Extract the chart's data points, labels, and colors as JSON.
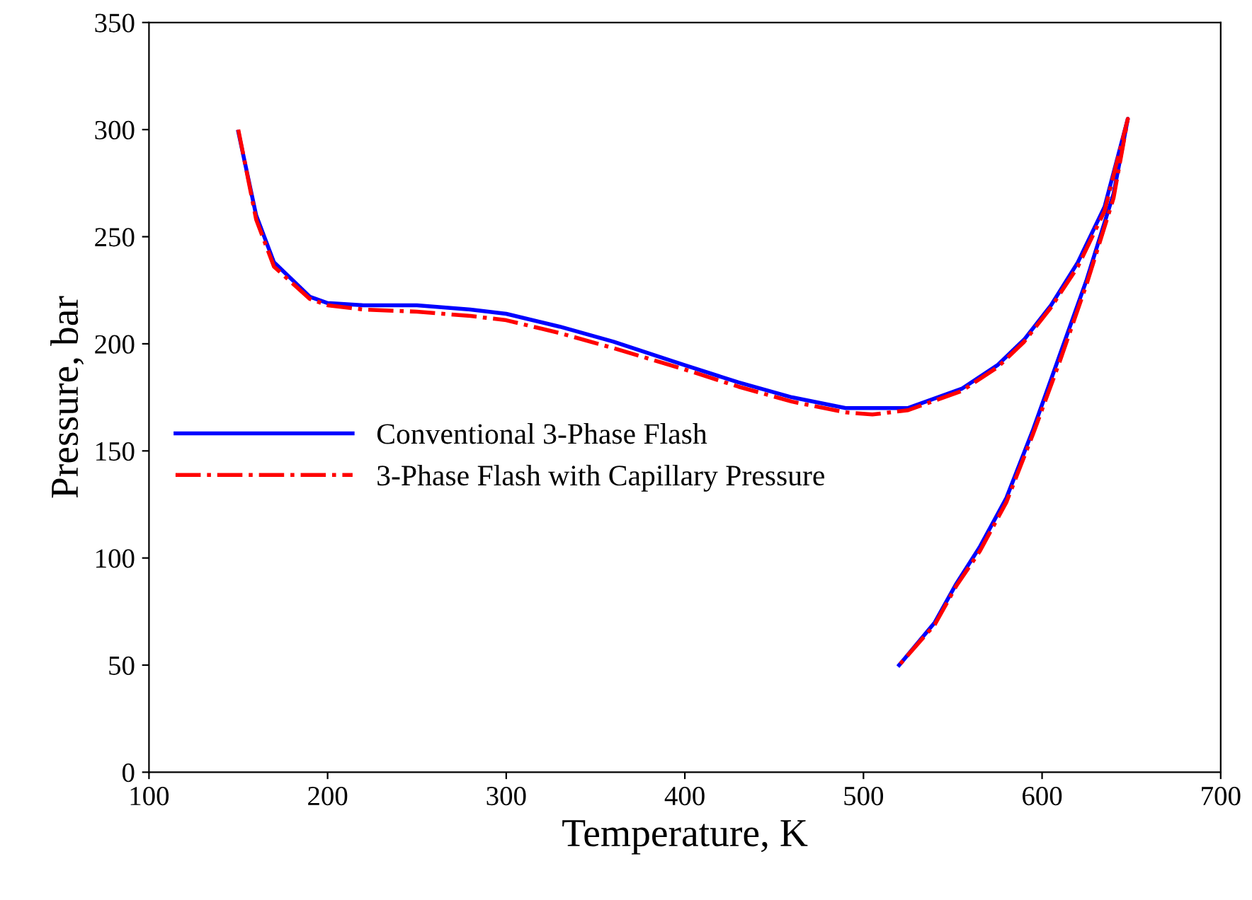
{
  "chart_data": {
    "type": "line",
    "xlabel": "Temperature, K",
    "ylabel": "Pressure, bar",
    "xlim": [
      100,
      700
    ],
    "xticks": [
      100,
      200,
      300,
      400,
      500,
      600,
      700
    ],
    "ylim": [
      0,
      350
    ],
    "yticks": [
      0,
      50,
      100,
      150,
      200,
      250,
      300,
      350
    ],
    "grid": false,
    "legend": "left",
    "marker": "none",
    "series": [
      {
        "name": "Conventional 3-Phase Flash",
        "color": "#0000ff",
        "line_style": "solid",
        "x": [
          150,
          160,
          170,
          190,
          200,
          220,
          250,
          280,
          300,
          330,
          360,
          400,
          430,
          460,
          490,
          525,
          555,
          575,
          590,
          605,
          620,
          635,
          648,
          640,
          625,
          610,
          595,
          580,
          565,
          552,
          540,
          520
        ],
        "values": [
          299,
          260,
          238,
          222,
          219,
          218,
          218,
          216,
          214,
          208,
          201,
          190,
          182,
          175,
          170,
          170,
          179,
          190,
          202,
          218,
          238,
          264,
          305,
          270,
          230,
          195,
          160,
          128,
          105,
          88,
          70,
          50
        ]
      },
      {
        "name": "3-Phase Flash with Capillary Pressure",
        "color": "#ff0000",
        "line_style": "dashdot",
        "x": [
          150,
          160,
          170,
          190,
          200,
          220,
          250,
          280,
          300,
          330,
          360,
          400,
          430,
          460,
          490,
          505,
          525,
          555,
          575,
          590,
          605,
          620,
          635,
          648,
          640,
          625,
          610,
          595,
          580,
          565,
          552,
          540,
          520
        ],
        "values": [
          300,
          258,
          236,
          221,
          218,
          216,
          215,
          213,
          211,
          205,
          198,
          188,
          180,
          173,
          168,
          167,
          169,
          178,
          189,
          201,
          217,
          236,
          262,
          305,
          268,
          228,
          192,
          158,
          126,
          103,
          87,
          69,
          50
        ]
      }
    ]
  }
}
